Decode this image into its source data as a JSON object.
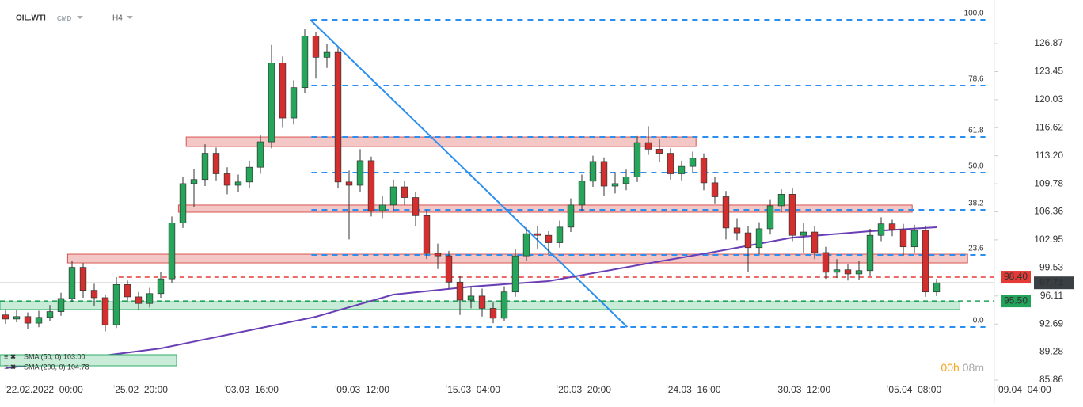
{
  "header": {
    "symbol": "OIL.WTI",
    "market": "CMD",
    "interval": "H4"
  },
  "chart_data": {
    "type": "candlestick",
    "xlim": [
      -0.5,
      89.5
    ],
    "ylim": [
      83.93,
      132.18
    ],
    "xticks": [
      {
        "value": 0,
        "label": "22.02.2022  00:00"
      },
      {
        "value": 9.8,
        "label": "25.02  20:00"
      },
      {
        "value": 19.8,
        "label": "03.03  16:00"
      },
      {
        "value": 29.8,
        "label": "09.03  12:00"
      },
      {
        "value": 39.8,
        "label": "15.03  04:00"
      },
      {
        "value": 49.8,
        "label": "20.03  20:00"
      },
      {
        "value": 59.7,
        "label": "24.03  16:00"
      },
      {
        "value": 69.6,
        "label": "30.03  12:00"
      },
      {
        "value": 79.6,
        "label": "05.04  08:00"
      },
      {
        "value": 89.5,
        "label": "09.04  04:00"
      }
    ],
    "yticks": [
      126.87,
      123.45,
      120.03,
      116.62,
      {
        "value": 113.2,
        "label": "113.20"
      },
      109.78,
      106.36,
      102.95,
      99.53,
      96.11,
      92.69,
      89.28,
      85.86
    ],
    "up_color": "#26a65b",
    "down_color": "#d32f2f",
    "ohlc": [
      [
        93.8,
        94.5,
        92.7,
        93.3
      ],
      [
        93.3,
        94.4,
        92.9,
        93.6
      ],
      [
        93.6,
        94.1,
        92.1,
        92.8
      ],
      [
        92.8,
        94.3,
        92.3,
        93.5
      ],
      [
        93.5,
        95.0,
        93.0,
        94.2
      ],
      [
        94.2,
        96.5,
        93.7,
        95.8
      ],
      [
        95.8,
        100.4,
        95.4,
        99.6
      ],
      [
        99.6,
        100.1,
        95.9,
        96.8
      ],
      [
        96.8,
        97.6,
        94.9,
        95.9
      ],
      [
        95.9,
        96.3,
        91.8,
        92.6
      ],
      [
        92.6,
        98.4,
        92.2,
        97.5
      ],
      [
        97.5,
        98.0,
        95.3,
        96.0
      ],
      [
        96.0,
        96.6,
        94.4,
        95.2
      ],
      [
        95.2,
        97.1,
        94.7,
        96.4
      ],
      [
        96.4,
        99.0,
        95.9,
        98.2
      ],
      [
        98.2,
        105.8,
        97.7,
        105.0
      ],
      [
        105.0,
        110.6,
        104.4,
        109.8
      ],
      [
        109.8,
        111.6,
        106.9,
        110.3
      ],
      [
        110.3,
        114.6,
        109.5,
        113.5
      ],
      [
        113.5,
        114.2,
        110.2,
        111.0
      ],
      [
        111.0,
        111.8,
        108.5,
        109.6
      ],
      [
        109.6,
        110.9,
        108.8,
        110.0
      ],
      [
        110.0,
        112.6,
        109.2,
        111.8
      ],
      [
        111.8,
        115.7,
        111.0,
        114.9
      ],
      [
        114.9,
        126.7,
        114.1,
        124.5
      ],
      [
        124.5,
        125.3,
        116.6,
        117.8
      ],
      [
        117.8,
        122.4,
        117.0,
        121.5
      ],
      [
        121.5,
        128.6,
        120.8,
        127.8
      ],
      [
        127.8,
        128.3,
        122.6,
        125.2
      ],
      [
        125.2,
        126.8,
        123.9,
        125.8
      ],
      [
        125.8,
        126.3,
        109.2,
        110.0
      ],
      [
        110.0,
        111.4,
        103.0,
        109.6
      ],
      [
        109.6,
        114.0,
        108.8,
        112.6
      ],
      [
        112.6,
        113.1,
        105.8,
        106.5
      ],
      [
        106.5,
        108.3,
        105.6,
        107.2
      ],
      [
        107.2,
        110.3,
        106.4,
        109.4
      ],
      [
        109.4,
        110.1,
        107.2,
        108.1
      ],
      [
        108.1,
        108.8,
        104.6,
        105.9
      ],
      [
        105.9,
        106.6,
        100.6,
        101.3
      ],
      [
        101.3,
        102.5,
        99.4,
        101.0
      ],
      [
        101.0,
        101.6,
        97.0,
        97.8
      ],
      [
        97.8,
        98.5,
        93.8,
        95.6
      ],
      [
        95.6,
        97.2,
        94.6,
        96.1
      ],
      [
        96.1,
        97.0,
        93.6,
        94.6
      ],
      [
        94.6,
        95.3,
        92.8,
        93.4
      ],
      [
        93.4,
        97.3,
        93.0,
        96.6
      ],
      [
        96.6,
        101.8,
        96.0,
        101.0
      ],
      [
        101.0,
        104.5,
        100.4,
        103.7
      ],
      [
        103.7,
        104.6,
        101.8,
        103.5
      ],
      [
        103.5,
        104.0,
        101.2,
        102.6
      ],
      [
        102.6,
        105.3,
        102.0,
        104.5
      ],
      [
        104.5,
        108.0,
        103.9,
        107.2
      ],
      [
        107.2,
        110.9,
        106.5,
        110.1
      ],
      [
        110.1,
        113.2,
        109.4,
        112.5
      ],
      [
        112.5,
        113.0,
        108.3,
        109.5
      ],
      [
        109.5,
        111.2,
        108.6,
        109.8
      ],
      [
        109.8,
        111.5,
        109.0,
        110.6
      ],
      [
        110.6,
        115.6,
        110.0,
        114.8
      ],
      [
        114.8,
        116.8,
        113.3,
        114.0
      ],
      [
        114.0,
        115.2,
        112.4,
        113.5
      ],
      [
        113.5,
        114.1,
        110.3,
        111.0
      ],
      [
        111.0,
        112.6,
        110.2,
        111.9
      ],
      [
        111.9,
        113.7,
        111.2,
        112.9
      ],
      [
        112.9,
        113.5,
        109.0,
        109.9
      ],
      [
        109.9,
        110.6,
        107.4,
        108.2
      ],
      [
        108.2,
        108.9,
        103.0,
        104.4
      ],
      [
        104.4,
        105.6,
        102.9,
        103.8
      ],
      [
        103.8,
        104.6,
        99.0,
        102.0
      ],
      [
        102.0,
        105.1,
        101.2,
        104.3
      ],
      [
        104.3,
        107.9,
        103.6,
        107.1
      ],
      [
        107.1,
        109.1,
        106.3,
        108.5
      ],
      [
        108.5,
        109.2,
        102.8,
        103.5
      ],
      [
        103.5,
        105.0,
        101.4,
        103.9
      ],
      [
        103.9,
        104.6,
        100.6,
        101.4
      ],
      [
        101.4,
        102.1,
        98.2,
        99.0
      ],
      [
        99.0,
        100.6,
        98.3,
        99.3
      ],
      [
        99.3,
        100.0,
        98.0,
        98.8
      ],
      [
        98.8,
        100.4,
        98.1,
        99.2
      ],
      [
        99.2,
        104.3,
        98.5,
        103.5
      ],
      [
        103.5,
        105.7,
        102.8,
        104.9
      ],
      [
        104.9,
        105.4,
        103.4,
        104.2
      ],
      [
        104.2,
        104.9,
        101.0,
        102.1
      ],
      [
        102.1,
        104.8,
        101.4,
        104.1
      ],
      [
        104.1,
        104.7,
        96.0,
        96.6
      ],
      [
        96.6,
        98.2,
        96.1,
        97.71
      ]
    ],
    "sma": {
      "color": "#6a3fb5",
      "x": [
        0,
        14,
        21,
        28,
        35,
        42,
        49,
        57,
        64,
        71,
        78,
        84
      ],
      "values": [
        87.31,
        89.72,
        91.65,
        93.58,
        96.28,
        97.25,
        97.92,
        99.85,
        101.49,
        103.23,
        104.0,
        104.48
      ]
    },
    "legend": [
      "SMA  (50, 0)  103.00",
      "SMA  (200, 0)  104.78"
    ],
    "zones": [
      {
        "from": 16.3,
        "to": 62.3,
        "low": 114.33,
        "high": 115.48,
        "color": "#f4c7c7"
      },
      {
        "from": 15.6,
        "to": 81.8,
        "low": 106.32,
        "high": 107.19,
        "color": "#f4c7c7"
      },
      {
        "from": 5.6,
        "to": 86.8,
        "low": 100.14,
        "high": 101.2,
        "color": "#f4c7c7"
      },
      {
        "from": -0.5,
        "to": 86.1,
        "low": 94.45,
        "high": 95.41,
        "color": "#c8ecd8"
      }
    ],
    "trendline": {
      "color": "#2a8ff0",
      "x": [
        27.5,
        56.1
      ],
      "values": [
        129.77,
        92.32
      ]
    },
    "fibonacci": {
      "color": "#2a8ff0",
      "from": 27.6,
      "to": 88.4,
      "labels": [
        "100.0",
        "78.6",
        "61.8",
        "50.0",
        "38.2",
        "23.6",
        "0.0"
      ],
      "prices": [
        129.77,
        121.76,
        115.48,
        111.14,
        106.61,
        101.11,
        92.32
      ]
    },
    "price_lines": [
      {
        "value": 98.4,
        "label": "98.40",
        "color": "#e53935",
        "from": 10.2
      },
      {
        "value": 95.5,
        "label": "95.50",
        "color": "#22a35a",
        "from": -0.5
      }
    ],
    "last_price": {
      "value": 97.71,
      "color": "#3a3f44"
    },
    "countdown": {
      "hours": "00h",
      "minutes": "08m"
    }
  }
}
